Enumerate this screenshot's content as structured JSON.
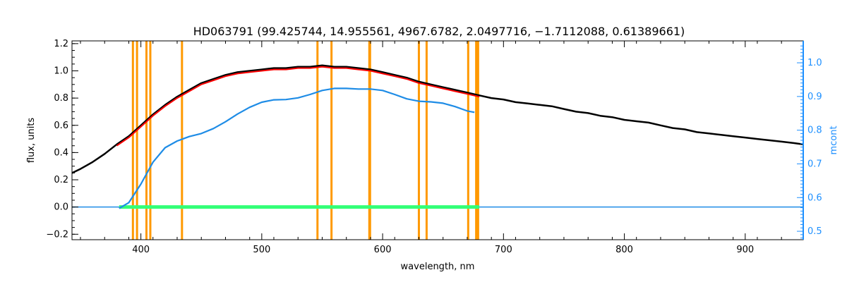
{
  "chart_data": {
    "type": "line",
    "title": "HD063791   (99.425744, 14.955561, 4967.6782, 2.0497716, −1.7112088, 0.61389661)",
    "xlabel": "wavelength, nm",
    "ylabel": "flux, units",
    "y2label": "mcont",
    "xlim": [
      343,
      948
    ],
    "ylim": [
      -0.24,
      1.22
    ],
    "y2lim": [
      0.475,
      1.065
    ],
    "x_ticks": [
      400,
      500,
      600,
      700,
      800,
      900
    ],
    "y_ticks": [
      -0.2,
      0.0,
      0.2,
      0.4,
      0.6,
      0.8,
      1.0,
      1.2
    ],
    "y_tick_labels": [
      "−0.2",
      "0.0",
      "0.2",
      "0.4",
      "0.6",
      "0.8",
      "1.0",
      "1.2"
    ],
    "y2_ticks": [
      0.5,
      0.6,
      0.7,
      0.8,
      0.9,
      1.0
    ],
    "y2_tick_labels": [
      "0.5",
      "0.6",
      "0.7",
      "0.8",
      "0.9",
      "1.0"
    ],
    "colors": {
      "observed": "#000000",
      "model": "#ff0000",
      "continuum": "#1e8ce6",
      "residual": "#33ff77",
      "lines": "#ff9900",
      "right_axis": "#1e90ff"
    },
    "vertical_lines": [
      393.4,
      396.8,
      404.6,
      407.8,
      434.0,
      546.1,
      557.7,
      589.0,
      589.6,
      630.0,
      636.4,
      670.8,
      677.4,
      679.0
    ],
    "series": [
      {
        "role": "observed",
        "x": [
          343,
          350,
          360,
          370,
          380,
          390,
          400,
          410,
          420,
          430,
          440,
          450,
          460,
          470,
          480,
          490,
          500,
          510,
          520,
          530,
          540,
          550,
          560,
          570,
          580,
          590,
          600,
          610,
          620,
          630,
          640,
          650,
          660,
          670,
          680,
          690,
          700,
          710,
          720,
          730,
          740,
          750,
          760,
          770,
          780,
          790,
          800,
          810,
          820,
          830,
          840,
          850,
          860,
          870,
          880,
          890,
          900,
          910,
          920,
          930,
          940,
          948
        ],
        "y": [
          0.25,
          0.28,
          0.33,
          0.39,
          0.46,
          0.52,
          0.6,
          0.68,
          0.75,
          0.81,
          0.86,
          0.91,
          0.94,
          0.97,
          0.99,
          1.0,
          1.01,
          1.02,
          1.02,
          1.03,
          1.03,
          1.04,
          1.03,
          1.03,
          1.02,
          1.01,
          0.99,
          0.97,
          0.95,
          0.92,
          0.9,
          0.88,
          0.86,
          0.84,
          0.82,
          0.8,
          0.79,
          0.77,
          0.76,
          0.75,
          0.74,
          0.72,
          0.7,
          0.69,
          0.67,
          0.66,
          0.64,
          0.63,
          0.62,
          0.6,
          0.58,
          0.57,
          0.55,
          0.54,
          0.53,
          0.52,
          0.51,
          0.5,
          0.49,
          0.48,
          0.47,
          0.46
        ]
      },
      {
        "role": "model",
        "x": [
          380,
          390,
          400,
          410,
          420,
          430,
          440,
          450,
          460,
          470,
          480,
          490,
          500,
          510,
          520,
          530,
          540,
          550,
          560,
          570,
          580,
          590,
          600,
          610,
          620,
          630,
          640,
          650,
          660,
          670,
          680
        ],
        "y": [
          0.45,
          0.51,
          0.59,
          0.67,
          0.74,
          0.8,
          0.85,
          0.9,
          0.93,
          0.96,
          0.98,
          0.99,
          1.0,
          1.01,
          1.01,
          1.02,
          1.02,
          1.03,
          1.02,
          1.02,
          1.01,
          1.0,
          0.98,
          0.96,
          0.94,
          0.91,
          0.89,
          0.87,
          0.85,
          0.83,
          0.81
        ]
      },
      {
        "role": "continuum",
        "axis": "right",
        "x": [
          382,
          390,
          400,
          410,
          420,
          430,
          440,
          450,
          460,
          470,
          480,
          490,
          500,
          510,
          520,
          530,
          540,
          550,
          560,
          570,
          580,
          590,
          600,
          610,
          620,
          630,
          640,
          650,
          660,
          670,
          676
        ],
        "y": [
          0.568,
          0.585,
          0.64,
          0.705,
          0.748,
          0.768,
          0.781,
          0.79,
          0.805,
          0.825,
          0.848,
          0.868,
          0.883,
          0.89,
          0.891,
          0.896,
          0.906,
          0.918,
          0.924,
          0.924,
          0.922,
          0.922,
          0.918,
          0.906,
          0.893,
          0.886,
          0.884,
          0.88,
          0.87,
          0.857,
          0.853
        ]
      },
      {
        "role": "residual",
        "x": [
          382,
          680
        ],
        "y": [
          0.0,
          0.0
        ]
      },
      {
        "role": "baseline",
        "x": [
          343,
          948
        ],
        "y": [
          0.0,
          0.0
        ]
      }
    ]
  }
}
